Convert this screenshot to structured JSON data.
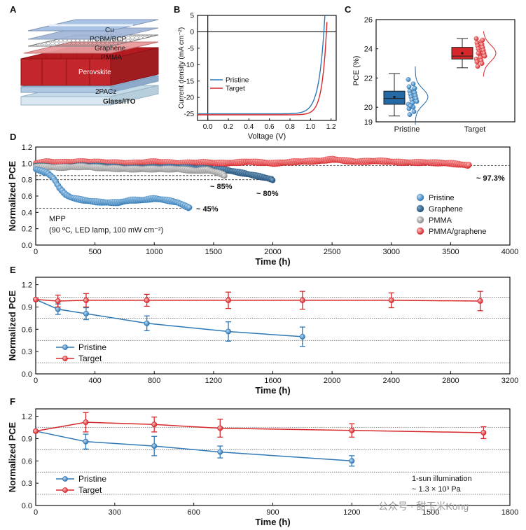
{
  "panel_labels": {
    "A": "A",
    "B": "B",
    "C": "C",
    "D": "D",
    "E": "E",
    "F": "F"
  },
  "colors": {
    "pristine": "#2f78b5",
    "target": "#d6282b",
    "graphene": "#1e4d74",
    "pmma": "#9b9b9b",
    "pmma_graphene": "#d6282b",
    "box_pristine": "#2468a4",
    "box_target": "#d6282b"
  },
  "device_stack": {
    "layers": [
      "Cu",
      "PCBM/BCP",
      "Graphene",
      "PMMA",
      "Perovskite",
      "2PACz",
      "Glass/ITO"
    ]
  },
  "watermark": "公众号 · 甜玉米Kong",
  "chart_data": [
    {
      "id": "B",
      "type": "line",
      "xlabel": "Voltage (V)",
      "ylabel": "Current density (mA cm⁻²)",
      "xlim": [
        -0.1,
        1.25
      ],
      "ylim": [
        -27,
        5
      ],
      "xticks": [
        "0.0",
        "0.2",
        "0.4",
        "0.6",
        "0.8",
        "1.0",
        "1.2"
      ],
      "yticks": [
        "5",
        "0",
        "-5",
        "-10",
        "-15",
        "-20",
        "-25"
      ],
      "series": [
        {
          "name": "Pristine",
          "color": "#2f78b5",
          "jsc": -25.0,
          "voc": 1.13,
          "n": 0.055
        },
        {
          "name": "Target",
          "color": "#d6282b",
          "jsc": -25.3,
          "voc": 1.155,
          "n": 0.045
        }
      ],
      "legend": [
        "Pristine",
        "Target"
      ]
    },
    {
      "id": "C",
      "type": "box",
      "ylabel": "PCE (%)",
      "ylim": [
        19,
        26
      ],
      "yticks": [
        "26",
        "24",
        "22",
        "20",
        "19"
      ],
      "categories": [
        "Pristine",
        "Target"
      ],
      "boxes": [
        {
          "name": "Pristine",
          "whisker_low": 19.4,
          "q1": 20.2,
          "median": 20.6,
          "q3": 21.1,
          "whisker_high": 22.3,
          "mean": 20.7,
          "points": [
            21.9,
            21.6,
            21.4,
            21.2,
            21.1,
            21.0,
            20.9,
            20.8,
            20.7,
            20.6,
            20.5,
            20.4,
            20.3,
            20.2,
            20.0,
            19.9,
            19.7,
            19.5,
            21.3,
            20.1
          ]
        },
        {
          "name": "Target",
          "whisker_low": 22.7,
          "q1": 23.3,
          "median": 23.5,
          "q3": 24.1,
          "whisker_high": 24.7,
          "mean": 23.7,
          "points": [
            24.7,
            24.5,
            24.4,
            24.3,
            24.2,
            24.1,
            24.0,
            23.9,
            23.8,
            23.7,
            23.6,
            23.5,
            23.4,
            23.3,
            23.2,
            23.1,
            23.0,
            22.8,
            24.6,
            23.7
          ]
        }
      ]
    },
    {
      "id": "D",
      "type": "scatter",
      "xlabel": "Time (h)",
      "ylabel": "Normalized PCE",
      "xlim": [
        0,
        4000
      ],
      "ylim": [
        0,
        1.2
      ],
      "xticks": [
        "0",
        "500",
        "1000",
        "1500",
        "2000",
        "2500",
        "3000",
        "3500",
        "4000"
      ],
      "yticks": [
        "1.2",
        "1.0",
        "0.8",
        "0.6",
        "0.4",
        "0.2",
        "0.0"
      ],
      "series": [
        {
          "name": "PMMA/graphene",
          "color": "#d6282b",
          "x": [
            0,
            100,
            200,
            400,
            600,
            800,
            1000,
            1200,
            1400,
            1600,
            1800,
            2000,
            2200,
            2400,
            2500,
            2700,
            2900,
            3100,
            3300,
            3500,
            3660
          ],
          "y": [
            1.0,
            1.02,
            1.01,
            1.02,
            1.01,
            1.0,
            1.02,
            1.0,
            1.01,
            1.0,
            1.02,
            1.0,
            1.02,
            1.03,
            1.05,
            1.02,
            1.03,
            1.01,
            1.01,
            1.0,
            0.973
          ]
        },
        {
          "name": "Graphene",
          "color": "#1e4d74",
          "x": [
            0,
            200,
            400,
            600,
            800,
            1000,
            1200,
            1400,
            1600,
            1750,
            1850,
            1950,
            2000
          ],
          "y": [
            0.97,
            0.95,
            0.97,
            0.96,
            0.94,
            0.95,
            0.95,
            0.94,
            0.92,
            0.88,
            0.85,
            0.82,
            0.8
          ]
        },
        {
          "name": "PMMA",
          "color": "#9b9b9b",
          "x": [
            0,
            200,
            400,
            600,
            800,
            1000,
            1200,
            1350,
            1450,
            1550,
            1600
          ],
          "y": [
            0.96,
            0.95,
            0.96,
            0.94,
            0.93,
            0.93,
            0.93,
            0.91,
            0.92,
            0.88,
            0.85
          ]
        },
        {
          "name": "Pristine",
          "color": "#2f78b5",
          "x": [
            0,
            100,
            150,
            200,
            250,
            300,
            400,
            500,
            600,
            700,
            800,
            900,
            1000,
            1100,
            1200,
            1300
          ],
          "y": [
            0.93,
            0.88,
            0.82,
            0.7,
            0.62,
            0.58,
            0.55,
            0.53,
            0.52,
            0.52,
            0.55,
            0.55,
            0.57,
            0.55,
            0.52,
            0.45
          ]
        }
      ],
      "reference_lines": [
        0.973,
        0.85,
        0.8,
        0.45
      ],
      "annotations": [
        "~ 97.3%",
        "~ 85%",
        "~ 80%",
        "~ 45%"
      ],
      "condition_text": [
        "MPP",
        "(90 ºC, LED lamp, 100 mW cm⁻²)"
      ],
      "legend": [
        "Pristine",
        "Graphene",
        "PMMA",
        "PMMA/graphene"
      ]
    },
    {
      "id": "E",
      "type": "line",
      "xlabel": "Time (h)",
      "ylabel": "Normalized PCE",
      "xlim": [
        0,
        3200
      ],
      "ylim": [
        0,
        1.3
      ],
      "xticks": [
        "0",
        "400",
        "800",
        "1200",
        "1600",
        "2000",
        "2400",
        "2800",
        "3200"
      ],
      "yticks": [
        "1.2",
        "0.9",
        "0.6",
        "0.3",
        "0.0"
      ],
      "series": [
        {
          "name": "Pristine",
          "color": "#2f78b5",
          "x": [
            0,
            150,
            340,
            750,
            1300,
            1800
          ],
          "y": [
            1.0,
            0.87,
            0.81,
            0.68,
            0.57,
            0.5
          ],
          "err": [
            0.0,
            0.07,
            0.08,
            0.1,
            0.13,
            0.13
          ]
        },
        {
          "name": "Target",
          "color": "#d6282b",
          "x": [
            0,
            150,
            340,
            750,
            1300,
            1800,
            2400,
            3000
          ],
          "y": [
            1.0,
            0.98,
            0.99,
            0.99,
            0.99,
            0.99,
            0.99,
            0.98
          ],
          "err": [
            0.0,
            0.08,
            0.09,
            0.08,
            0.11,
            0.12,
            0.1,
            0.13
          ]
        }
      ],
      "reference_lines": [
        1.03,
        0.75,
        0.45,
        0.15
      ],
      "legend": [
        "Pristine",
        "Target"
      ]
    },
    {
      "id": "F",
      "type": "line",
      "xlabel": "Time (h)",
      "ylabel": "Normalized PCE",
      "xlim": [
        0,
        1800
      ],
      "ylim": [
        0,
        1.3
      ],
      "xticks": [
        "0",
        "300",
        "600",
        "900",
        "1200",
        "1500",
        "1800"
      ],
      "yticks": [
        "1.2",
        "0.9",
        "0.6",
        "0.3",
        "0.0"
      ],
      "series": [
        {
          "name": "Pristine",
          "color": "#2f78b5",
          "x": [
            0,
            190,
            450,
            700,
            1200
          ],
          "y": [
            1.0,
            0.86,
            0.8,
            0.72,
            0.6
          ],
          "err": [
            0.0,
            0.1,
            0.13,
            0.08,
            0.07
          ]
        },
        {
          "name": "Target",
          "color": "#d6282b",
          "x": [
            0,
            190,
            450,
            700,
            1200,
            1700
          ],
          "y": [
            1.0,
            1.12,
            1.09,
            1.04,
            1.01,
            0.98
          ],
          "err": [
            0.0,
            0.13,
            0.1,
            0.12,
            0.09,
            0.08
          ]
        }
      ],
      "reference_lines": [
        1.05,
        0.75,
        0.45,
        0.15
      ],
      "condition_text": [
        "1-sun illumination",
        "~ 1.3 × 10³ Pa"
      ],
      "legend": [
        "Pristine",
        "Target"
      ]
    }
  ]
}
